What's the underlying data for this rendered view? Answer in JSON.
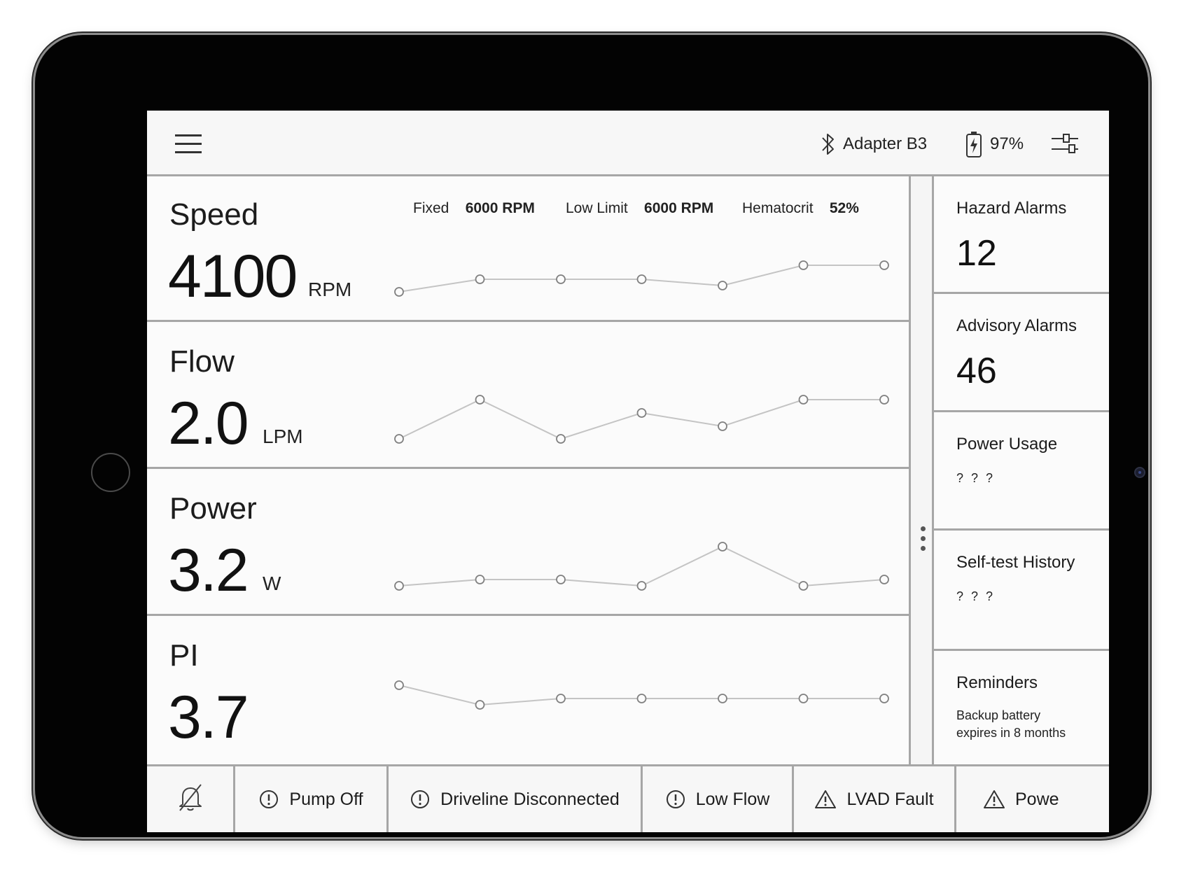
{
  "topbar": {
    "connection_label": "Adapter B3",
    "battery_label": "97%"
  },
  "metrics": [
    {
      "title": "Speed",
      "value": "4100",
      "unit": "RPM",
      "trend": [
        0,
        18,
        18,
        18,
        9,
        38,
        38
      ]
    },
    {
      "title": "Flow",
      "value": "2.0",
      "unit": "LPM",
      "trend": [
        0,
        56,
        0,
        37,
        18,
        56,
        56
      ]
    },
    {
      "title": "Power",
      "value": "3.2",
      "unit": "W",
      "trend": [
        0,
        9,
        9,
        0,
        56,
        0,
        9
      ]
    },
    {
      "title": "PI",
      "value": "3.7",
      "unit": "",
      "trend": [
        28,
        0,
        9,
        9,
        9,
        9,
        9
      ]
    }
  ],
  "speed_params": {
    "fixed_label": "Fixed",
    "fixed_value": "6000 RPM",
    "low_limit_label": "Low Limit",
    "low_limit_value": "6000 RPM",
    "hematocrit_label": "Hematocrit",
    "hematocrit_value": "52%"
  },
  "side_panels": {
    "hazard": {
      "title": "Hazard Alarms",
      "count": "12"
    },
    "advisory": {
      "title": "Advisory Alarms",
      "count": "46"
    },
    "power_usage": {
      "title": "Power Usage",
      "value": "? ? ?"
    },
    "self_test": {
      "title": "Self-test History",
      "value": "? ? ?"
    },
    "reminders": {
      "title": "Reminders",
      "line1": "Backup battery",
      "line2": "expires in 8 months"
    }
  },
  "alarms": [
    {
      "label": "Pump Off",
      "icon": "info-circle-icon"
    },
    {
      "label": "Driveline Disconnected",
      "icon": "info-circle-icon"
    },
    {
      "label": "Low Flow",
      "icon": "info-circle-icon"
    },
    {
      "label": "LVAD Fault",
      "icon": "warning-triangle-icon"
    },
    {
      "label": "Powe",
      "icon": "warning-triangle-icon"
    }
  ],
  "icons": {
    "menu": "hamburger-menu-icon",
    "bluetooth": "bluetooth-icon",
    "battery": "battery-charging-icon",
    "settings": "sliders-settings-icon",
    "mute": "bell-off-icon"
  },
  "colors": {
    "divider": "#a6a6a6",
    "chart_line": "#c4c4c4",
    "chart_point": "#808080"
  }
}
